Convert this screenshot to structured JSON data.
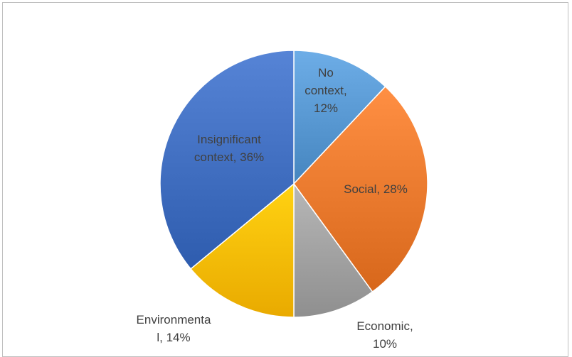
{
  "chart_data": {
    "type": "pie",
    "title": "",
    "slices": [
      {
        "label": "No context",
        "value": 12,
        "value_label": "12%",
        "color": "#5b9bd5"
      },
      {
        "label": "Social",
        "value": 28,
        "value_label": "28%",
        "color": "#ed7d31"
      },
      {
        "label": "Economic",
        "value": 10,
        "value_label": "10%",
        "color": "#a5a5a5"
      },
      {
        "label": "Environmental",
        "value": 14,
        "value_label": "14%",
        "color": "#ffc000"
      },
      {
        "label": "Insignificant context",
        "value": 36,
        "value_label": "36%",
        "color": "#4472c4"
      }
    ],
    "data_labels": [
      [
        "No",
        "context,",
        "12%"
      ],
      [
        "Social, 28%"
      ],
      [
        "Economic,",
        "10%"
      ],
      [
        "Environmenta",
        "l, 14%"
      ],
      [
        "Insignificant",
        "context, 36%"
      ]
    ],
    "start_angle": "12 o'clock",
    "direction": "clockwise",
    "legend": "none"
  }
}
